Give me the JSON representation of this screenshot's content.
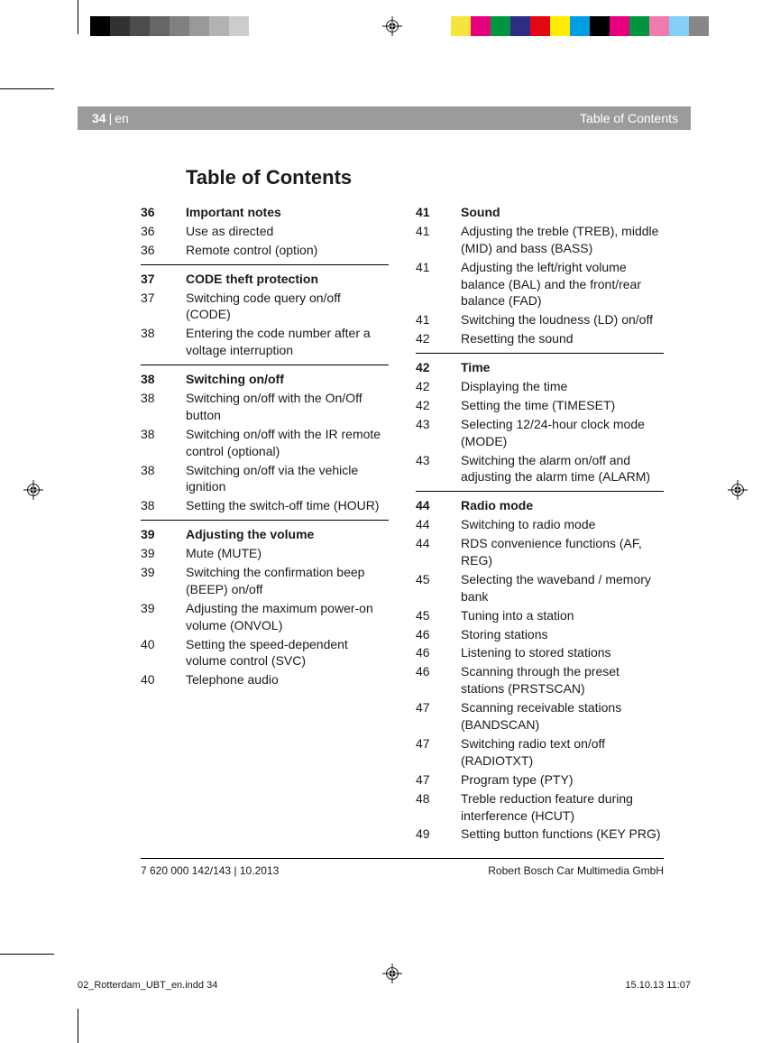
{
  "header": {
    "page": "34",
    "lang": "en",
    "right": "Table of Contents"
  },
  "title": "Table of Contents",
  "left_sections": [
    {
      "rows": [
        {
          "p": "36",
          "t": "Important notes",
          "bold": true
        },
        {
          "p": "36",
          "t": "Use as directed"
        },
        {
          "p": "36",
          "t": "Remote control (option)"
        }
      ]
    },
    {
      "rows": [
        {
          "p": "37",
          "t": "CODE theft protection",
          "bold": true
        },
        {
          "p": "37",
          "t": "Switching code query on/off (CODE)"
        },
        {
          "p": "38",
          "t": "Entering the code number after a voltage interruption"
        }
      ]
    },
    {
      "rows": [
        {
          "p": "38",
          "t": "Switching on/off",
          "bold": true
        },
        {
          "p": "38",
          "t": "Switching on/off with the On/Off button"
        },
        {
          "p": "38",
          "t": "Switching on/off with the IR remote control (optional)"
        },
        {
          "p": "38",
          "t": "Switching on/off via the vehicle ignition"
        },
        {
          "p": "38",
          "t": "Setting the switch-off time (HOUR)"
        }
      ]
    },
    {
      "rows": [
        {
          "p": "39",
          "t": "Adjusting the volume",
          "bold": true
        },
        {
          "p": "39",
          "t": "Mute (MUTE)"
        },
        {
          "p": "39",
          "t": "Switching the confirmation beep (BEEP) on/off"
        },
        {
          "p": "39",
          "t": "Adjusting the maximum power-on volume (ONVOL)"
        },
        {
          "p": "40",
          "t": "Setting the speed-dependent volume control (SVC)"
        },
        {
          "p": "40",
          "t": "Telephone audio"
        }
      ]
    }
  ],
  "right_sections": [
    {
      "rows": [
        {
          "p": "41",
          "t": "Sound",
          "bold": true
        },
        {
          "p": "41",
          "t": "Adjusting the treble (TREB), middle (MID) and bass (BASS)"
        },
        {
          "p": "41",
          "t": "Adjusting the left/right volume balance (BAL) and the front/rear balance (FAD)"
        },
        {
          "p": "41",
          "t": "Switching the loudness (LD) on/off"
        },
        {
          "p": "42",
          "t": "Resetting the sound"
        }
      ]
    },
    {
      "rows": [
        {
          "p": "42",
          "t": "Time",
          "bold": true
        },
        {
          "p": "42",
          "t": "Displaying the time"
        },
        {
          "p": "42",
          "t": "Setting the time (TIMESET)"
        },
        {
          "p": "43",
          "t": "Selecting 12/24-hour clock mode (MODE)"
        },
        {
          "p": "43",
          "t": "Switching the alarm on/off and adjusting the alarm time (ALARM)"
        }
      ]
    },
    {
      "rows": [
        {
          "p": "44",
          "t": "Radio mode",
          "bold": true
        },
        {
          "p": "44",
          "t": "Switching to radio mode"
        },
        {
          "p": "44",
          "t": "RDS convenience functions (AF, REG)"
        },
        {
          "p": "45",
          "t": "Selecting the waveband / memory bank"
        },
        {
          "p": "45",
          "t": "Tuning into a station"
        },
        {
          "p": "46",
          "t": "Storing stations"
        },
        {
          "p": "46",
          "t": "Listening to stored stations"
        },
        {
          "p": "46",
          "t": "Scanning through the preset stations (PRSTSCAN)"
        },
        {
          "p": "47",
          "t": "Scanning receivable stations (BANDSCAN)"
        },
        {
          "p": "47",
          "t": "Switching radio text on/off (RADIOTXT)"
        },
        {
          "p": "47",
          "t": "Program type (PTY)"
        },
        {
          "p": "48",
          "t": "Treble reduction feature during interference (HCUT)"
        },
        {
          "p": "49",
          "t": "Setting button functions (KEY PRG)"
        }
      ]
    }
  ],
  "footer": {
    "left": "7 620 000 142/143 | 10.2013",
    "right": "Robert Bosch Car Multimedia GmbH"
  },
  "slug": {
    "left": "02_Rotterdam_UBT_en.indd   34",
    "right": "15.10.13   11:07"
  },
  "color_bars_left": [
    "#000000",
    "#323232",
    "#4c4c4c",
    "#666666",
    "#808080",
    "#999999",
    "#b2b2b2",
    "#cccccc",
    "#ffffff",
    "#ffffff",
    "#ffffff",
    "#ffffff",
    "#ffffff",
    "#ffffff"
  ],
  "color_bars_right": [
    "#ffffff",
    "#f7e33e",
    "#e6007e",
    "#009640",
    "#2d2e83",
    "#e30613",
    "#ffed00",
    "#009fe3",
    "#000000",
    "#e6007e",
    "#009640",
    "#ee7cae",
    "#83d0f5",
    "#878787"
  ]
}
